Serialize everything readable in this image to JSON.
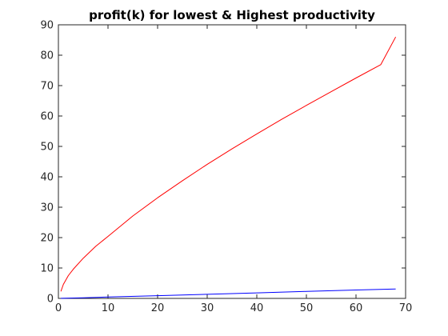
{
  "chart_data": {
    "type": "line",
    "title": "profit(k) for lowest & Highest productivity",
    "xlabel": "",
    "ylabel": "",
    "xlim": [
      0,
      70
    ],
    "ylim": [
      0,
      90
    ],
    "xticks": [
      0,
      10,
      20,
      30,
      40,
      50,
      60,
      70
    ],
    "yticks": [
      0,
      10,
      20,
      30,
      40,
      50,
      60,
      70,
      80,
      90
    ],
    "grid": false,
    "series": [
      {
        "color": "#ff0000",
        "x": [
          0.5,
          1,
          2,
          3,
          5,
          7.5,
          10,
          15,
          20,
          25,
          30,
          35,
          40,
          45,
          50,
          55,
          60,
          65,
          68
        ],
        "y": [
          2.3,
          4.6,
          7.5,
          9.6,
          13.2,
          17.1,
          20.4,
          27.1,
          33.1,
          38.7,
          44.1,
          49.2,
          54.1,
          58.9,
          63.5,
          68.0,
          72.5,
          76.9,
          86.0
        ]
      },
      {
        "color": "#0000ff",
        "x": [
          0.5,
          5,
          10,
          20,
          30,
          40,
          50,
          60,
          68
        ],
        "y": [
          0.02,
          0.2,
          0.45,
          0.9,
          1.35,
          1.8,
          2.3,
          2.75,
          3.1
        ]
      }
    ]
  }
}
